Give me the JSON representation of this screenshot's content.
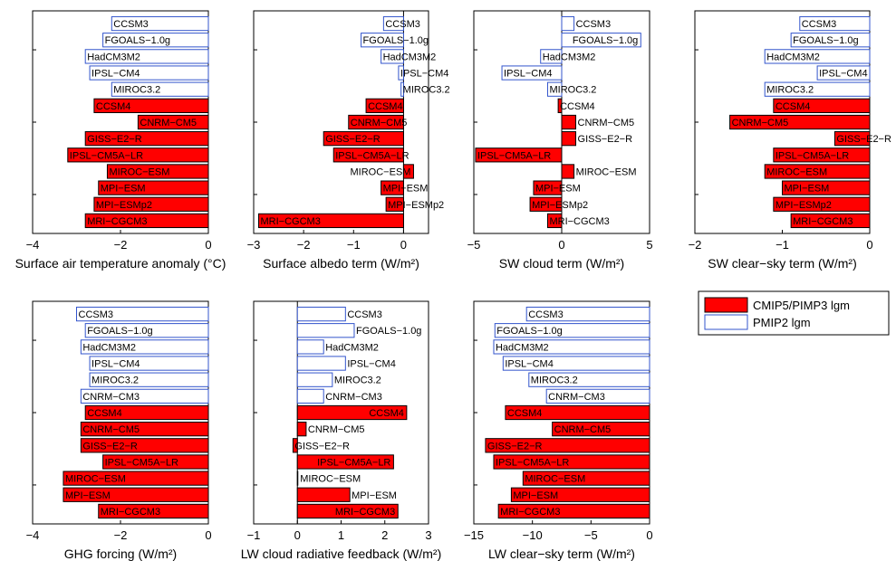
{
  "colors": {
    "cmip5_fill": "#ff0000",
    "pmip2_stroke": "#3355cc",
    "axis": "#000000"
  },
  "legend": {
    "items": [
      {
        "label": "CMIP5/PIMP3 lgm",
        "style": "filled"
      },
      {
        "label": "PMIP2 lgm",
        "style": "outline"
      }
    ]
  },
  "chart_data": [
    {
      "type": "bar",
      "orientation": "horizontal",
      "xlabel": "Surface air temperature anomaly (°C)",
      "xlim": [
        -4,
        0
      ],
      "xticks": [
        -4,
        -2,
        0
      ],
      "xtick_labels": [
        "−4",
        "−2",
        "0"
      ],
      "bars": [
        {
          "label": "CCSM3",
          "value": -2.2,
          "group": "PMIP2"
        },
        {
          "label": "FGOALS−1.0g",
          "value": -2.4,
          "group": "PMIP2"
        },
        {
          "label": "HadCM3M2",
          "value": -2.8,
          "group": "PMIP2"
        },
        {
          "label": "IPSL−CM4",
          "value": -2.7,
          "group": "PMIP2"
        },
        {
          "label": "MIROC3.2",
          "value": -2.2,
          "group": "PMIP2"
        },
        {
          "label": "CCSM4",
          "value": -2.6,
          "group": "CMIP5"
        },
        {
          "label": "CNRM−CM5",
          "value": -1.6,
          "group": "CMIP5"
        },
        {
          "label": "GISS−E2−R",
          "value": -2.8,
          "group": "CMIP5"
        },
        {
          "label": "IPSL−CM5A−LR",
          "value": -3.2,
          "group": "CMIP5"
        },
        {
          "label": "MIROC−ESM",
          "value": -2.3,
          "group": "CMIP5"
        },
        {
          "label": "MPI−ESM",
          "value": -2.5,
          "group": "CMIP5"
        },
        {
          "label": "MPI−ESMp2",
          "value": -2.6,
          "group": "CMIP5"
        },
        {
          "label": "MRI−CGCM3",
          "value": -2.8,
          "group": "CMIP5"
        }
      ]
    },
    {
      "type": "bar",
      "orientation": "horizontal",
      "xlabel": "Surface albedo term (W/m²)",
      "xlim": [
        -3,
        0.5
      ],
      "xticks": [
        -3,
        -2,
        -1,
        0
      ],
      "xtick_labels": [
        "−3",
        "−2",
        "−1",
        "0"
      ],
      "bars": [
        {
          "label": "CCSM3",
          "value": -0.4,
          "group": "PMIP2"
        },
        {
          "label": "FGOALS−1.0g",
          "value": -0.85,
          "group": "PMIP2"
        },
        {
          "label": "HadCM3M2",
          "value": -0.45,
          "group": "PMIP2"
        },
        {
          "label": "IPSL−CM4",
          "value": -0.1,
          "group": "PMIP2"
        },
        {
          "label": "MIROC3.2",
          "value": -0.05,
          "group": "PMIP2"
        },
        {
          "label": "CCSM4",
          "value": -0.75,
          "group": "CMIP5"
        },
        {
          "label": "CNRM−CM5",
          "value": -1.1,
          "group": "CMIP5"
        },
        {
          "label": "GISS−E2−R",
          "value": -1.6,
          "group": "CMIP5"
        },
        {
          "label": "IPSL−CM5A−LR",
          "value": -1.4,
          "group": "CMIP5"
        },
        {
          "label": "MIROC−ESM",
          "value": 0.2,
          "group": "CMIP5"
        },
        {
          "label": "MPI−ESM",
          "value": -0.45,
          "group": "CMIP5"
        },
        {
          "label": "MPI−ESMp2",
          "value": -0.35,
          "group": "CMIP5"
        },
        {
          "label": "MRI−CGCM3",
          "value": -2.9,
          "group": "CMIP5"
        }
      ]
    },
    {
      "type": "bar",
      "orientation": "horizontal",
      "xlabel": "SW cloud term (W/m²)",
      "xlim": [
        -5,
        5
      ],
      "xticks": [
        -5,
        0,
        5
      ],
      "xtick_labels": [
        "−5",
        "0",
        "5"
      ],
      "bars": [
        {
          "label": "CCSM3",
          "value": 0.7,
          "group": "PMIP2"
        },
        {
          "label": "FGOALS−1.0g",
          "value": 4.5,
          "group": "PMIP2"
        },
        {
          "label": "HadCM3M2",
          "value": -1.2,
          "group": "PMIP2"
        },
        {
          "label": "IPSL−CM4",
          "value": -3.4,
          "group": "PMIP2"
        },
        {
          "label": "MIROC3.2",
          "value": -0.8,
          "group": "PMIP2"
        },
        {
          "label": "CCSM4",
          "value": -0.2,
          "group": "CMIP5"
        },
        {
          "label": "CNRM−CM5",
          "value": 0.8,
          "group": "CMIP5"
        },
        {
          "label": "GISS−E2−R",
          "value": 0.8,
          "group": "CMIP5"
        },
        {
          "label": "IPSL−CM5A−LR",
          "value": -4.9,
          "group": "CMIP5"
        },
        {
          "label": "MIROC−ESM",
          "value": 0.7,
          "group": "CMIP5"
        },
        {
          "label": "MPI−ESM",
          "value": -1.6,
          "group": "CMIP5"
        },
        {
          "label": "MPI−ESMp2",
          "value": -1.8,
          "group": "CMIP5"
        },
        {
          "label": "MRI−CGCM3",
          "value": -0.8,
          "group": "CMIP5"
        }
      ]
    },
    {
      "type": "bar",
      "orientation": "horizontal",
      "xlabel": "SW clear−sky term (W/m²)",
      "xlim": [
        -2,
        0
      ],
      "xticks": [
        -2,
        -1,
        0
      ],
      "xtick_labels": [
        "−2",
        "−1",
        "0"
      ],
      "bars": [
        {
          "label": "CCSM3",
          "value": -0.8,
          "group": "PMIP2"
        },
        {
          "label": "FGOALS−1.0g",
          "value": -0.9,
          "group": "PMIP2"
        },
        {
          "label": "HadCM3M2",
          "value": -1.2,
          "group": "PMIP2"
        },
        {
          "label": "IPSL−CM4",
          "value": -0.6,
          "group": "PMIP2"
        },
        {
          "label": "MIROC3.2",
          "value": -1.2,
          "group": "PMIP2"
        },
        {
          "label": "CCSM4",
          "value": -1.1,
          "group": "CMIP5"
        },
        {
          "label": "CNRM−CM5",
          "value": -1.6,
          "group": "CMIP5"
        },
        {
          "label": "GISS−E2−R",
          "value": -0.4,
          "group": "CMIP5"
        },
        {
          "label": "IPSL−CM5A−LR",
          "value": -1.1,
          "group": "CMIP5"
        },
        {
          "label": "MIROC−ESM",
          "value": -1.2,
          "group": "CMIP5"
        },
        {
          "label": "MPI−ESM",
          "value": -1.0,
          "group": "CMIP5"
        },
        {
          "label": "MPI−ESMp2",
          "value": -1.1,
          "group": "CMIP5"
        },
        {
          "label": "MRI−CGCM3",
          "value": -0.9,
          "group": "CMIP5"
        }
      ]
    },
    {
      "type": "bar",
      "orientation": "horizontal",
      "xlabel": "GHG forcing (W/m²)",
      "xlim": [
        -4,
        0
      ],
      "xticks": [
        -4,
        -2,
        0
      ],
      "xtick_labels": [
        "−4",
        "−2",
        "0"
      ],
      "bars": [
        {
          "label": "CCSM3",
          "value": -3.0,
          "group": "PMIP2"
        },
        {
          "label": "FGOALS−1.0g",
          "value": -2.8,
          "group": "PMIP2"
        },
        {
          "label": "HadCM3M2",
          "value": -2.9,
          "group": "PMIP2"
        },
        {
          "label": "IPSL−CM4",
          "value": -2.7,
          "group": "PMIP2"
        },
        {
          "label": "MIROC3.2",
          "value": -2.7,
          "group": "PMIP2"
        },
        {
          "label": "CNRM−CM3",
          "value": -2.9,
          "group": "PMIP2"
        },
        {
          "label": "CCSM4",
          "value": -2.8,
          "group": "CMIP5"
        },
        {
          "label": "CNRM−CM5",
          "value": -2.9,
          "group": "CMIP5"
        },
        {
          "label": "GISS−E2−R",
          "value": -2.9,
          "group": "CMIP5"
        },
        {
          "label": "IPSL−CM5A−LR",
          "value": -2.4,
          "group": "CMIP5"
        },
        {
          "label": "MIROC−ESM",
          "value": -3.3,
          "group": "CMIP5"
        },
        {
          "label": "MPI−ESM",
          "value": -3.3,
          "group": "CMIP5"
        },
        {
          "label": "MRI−CGCM3",
          "value": -2.5,
          "group": "CMIP5"
        }
      ]
    },
    {
      "type": "bar",
      "orientation": "horizontal",
      "xlabel": "LW cloud radiative feedback (W/m²)",
      "xlim": [
        -1,
        3
      ],
      "xticks": [
        -1,
        0,
        1,
        2,
        3
      ],
      "xtick_labels": [
        "−1",
        "0",
        "1",
        "2",
        "3"
      ],
      "bars": [
        {
          "label": "CCSM3",
          "value": 1.1,
          "group": "PMIP2"
        },
        {
          "label": "FGOALS−1.0g",
          "value": 1.3,
          "group": "PMIP2"
        },
        {
          "label": "HadCM3M2",
          "value": 0.6,
          "group": "PMIP2"
        },
        {
          "label": "IPSL−CM4",
          "value": 1.1,
          "group": "PMIP2"
        },
        {
          "label": "MIROC3.2",
          "value": 0.8,
          "group": "PMIP2"
        },
        {
          "label": "CNRM−CM3",
          "value": 0.6,
          "group": "PMIP2"
        },
        {
          "label": "CCSM4",
          "value": 2.5,
          "group": "CMIP5"
        },
        {
          "label": "CNRM−CM5",
          "value": 0.2,
          "group": "CMIP5"
        },
        {
          "label": "GISS−E2−R",
          "value": -0.1,
          "group": "CMIP5"
        },
        {
          "label": "IPSL−CM5A−LR",
          "value": 2.2,
          "group": "CMIP5"
        },
        {
          "label": "MIROC−ESM",
          "value": 0.0,
          "group": "CMIP5"
        },
        {
          "label": "MPI−ESM",
          "value": 1.2,
          "group": "CMIP5"
        },
        {
          "label": "MRI−CGCM3",
          "value": 2.3,
          "group": "CMIP5"
        }
      ]
    },
    {
      "type": "bar",
      "orientation": "horizontal",
      "xlabel": "LW clear−sky term (W/m²)",
      "xlim": [
        -15,
        0
      ],
      "xticks": [
        -15,
        -10,
        -5,
        0
      ],
      "xtick_labels": [
        "−15",
        "−10",
        "−5",
        "0"
      ],
      "bars": [
        {
          "label": "CCSM3",
          "value": -10.5,
          "group": "PMIP2"
        },
        {
          "label": "FGOALS−1.0g",
          "value": -13.2,
          "group": "PMIP2"
        },
        {
          "label": "HadCM3M2",
          "value": -13.3,
          "group": "PMIP2"
        },
        {
          "label": "IPSL−CM4",
          "value": -12.5,
          "group": "PMIP2"
        },
        {
          "label": "MIROC3.2",
          "value": -10.3,
          "group": "PMIP2"
        },
        {
          "label": "CNRM−CM3",
          "value": -8.8,
          "group": "PMIP2"
        },
        {
          "label": "CCSM4",
          "value": -12.3,
          "group": "CMIP5"
        },
        {
          "label": "CNRM−CM5",
          "value": -8.3,
          "group": "CMIP5"
        },
        {
          "label": "GISS−E2−R",
          "value": -14.0,
          "group": "CMIP5"
        },
        {
          "label": "IPSL−CM5A−LR",
          "value": -13.3,
          "group": "CMIP5"
        },
        {
          "label": "MIROC−ESM",
          "value": -10.8,
          "group": "CMIP5"
        },
        {
          "label": "MPI−ESM",
          "value": -11.8,
          "group": "CMIP5"
        },
        {
          "label": "MRI−CGCM3",
          "value": -12.9,
          "group": "CMIP5"
        }
      ]
    }
  ]
}
